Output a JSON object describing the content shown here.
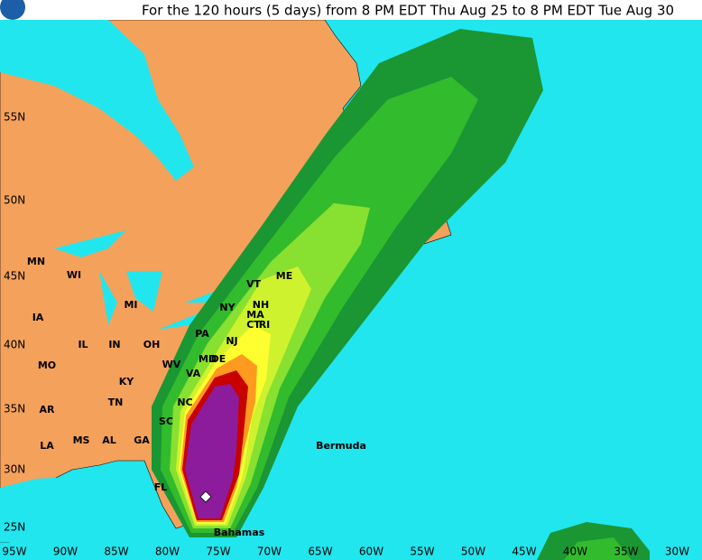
{
  "title": "For the 120 hours (5 days) from 8 PM EDT Thu Aug 25 to 8 PM EDT Tue Aug 30",
  "lat_labels": [
    "55N",
    "50N",
    "45N",
    "40N",
    "35N",
    "30N",
    "25N"
  ],
  "lon_labels": [
    "95W",
    "90W",
    "85W",
    "80W",
    "75W",
    "70W",
    "65W",
    "60W",
    "55W",
    "50W",
    "45W",
    "40W",
    "35W",
    "30W"
  ],
  "place_labels": [
    "MN",
    "WI",
    "MI",
    "IA",
    "IL",
    "IN",
    "OH",
    "PA",
    "NY",
    "VT",
    "ME",
    "NH",
    "MA",
    "CT",
    "RI",
    "NJ",
    "MD",
    "DE",
    "WV",
    "VA",
    "KY",
    "MO",
    "TN",
    "NC",
    "AR",
    "SC",
    "LA",
    "MS",
    "AL",
    "GA",
    "FL",
    "Bermuda",
    "Bahamas"
  ]
}
